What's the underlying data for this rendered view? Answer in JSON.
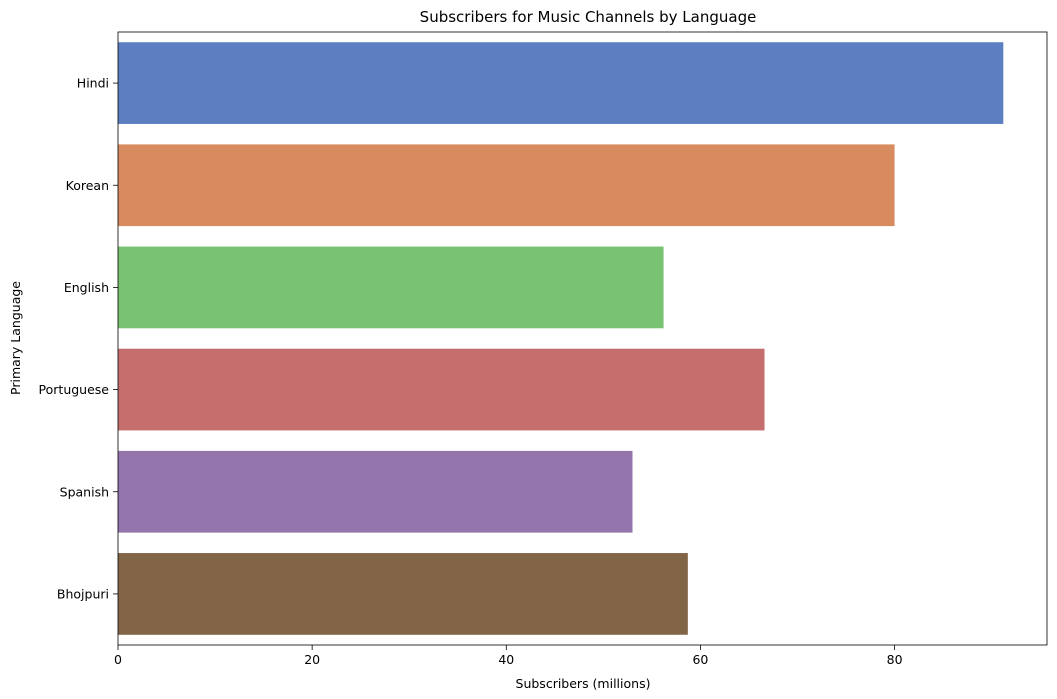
{
  "chart_data": {
    "type": "bar",
    "orientation": "horizontal",
    "title": "Subscribers for Music Channels by Language",
    "xlabel": "Subscribers (millions)",
    "ylabel": "Primary Language",
    "xlim": [
      0,
      95.7
    ],
    "xticks": [
      "0",
      "20",
      "40",
      "60",
      "80"
    ],
    "grid": false,
    "categories": [
      "Hindi",
      "Korean",
      "English",
      "Portuguese",
      "Spanish",
      "Bhojpuri"
    ],
    "values": [
      91.2,
      80.0,
      56.2,
      66.6,
      53.0,
      58.7
    ],
    "colors": [
      "#5b7fc1",
      "#d88b5e",
      "#78c271",
      "#c66e6e",
      "#9475ac",
      "#826447"
    ]
  }
}
